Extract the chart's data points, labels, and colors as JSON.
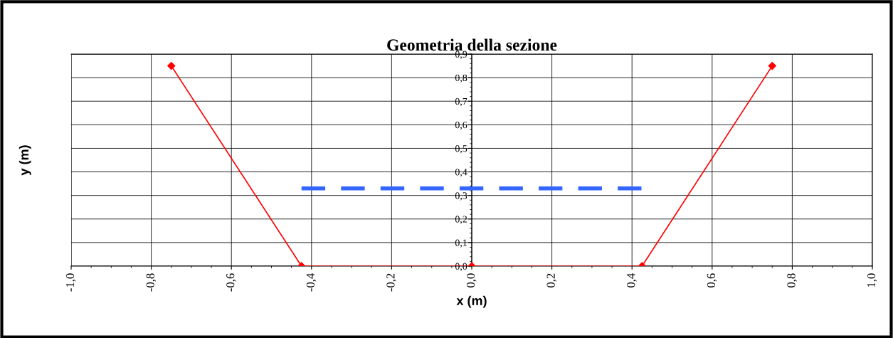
{
  "chart_data": {
    "type": "line",
    "title": "Geometria della sezione",
    "xlabel": "x (m)",
    "ylabel": "y (m)",
    "series": [
      {
        "color": "#ff0000",
        "x": [
          -0.75,
          -0.425,
          0,
          0.425,
          0.75
        ],
        "values": [
          0.85,
          0,
          0,
          0,
          0.85
        ],
        "marker": "diamond",
        "line_style": "solid"
      },
      {
        "color": "#3366ff",
        "x": [
          -0.425,
          0.425
        ],
        "values": [
          0.33,
          0.33
        ],
        "marker": "none",
        "line_style": "dashed"
      }
    ],
    "xlim": [
      -1,
      1
    ],
    "ylim": [
      0,
      0.9
    ],
    "xticks": [
      {
        "value": -1,
        "label": "-1,0"
      },
      {
        "value": -0.8,
        "label": "-0,8"
      },
      {
        "value": -0.6,
        "label": "-0,6"
      },
      {
        "value": -0.4,
        "label": "-0,4"
      },
      {
        "value": -0.2,
        "label": "-0,2"
      },
      {
        "value": 0,
        "label": "0,0"
      },
      {
        "value": 0.2,
        "label": "0,2"
      },
      {
        "value": 0.4,
        "label": "0,4"
      },
      {
        "value": 0.6,
        "label": "0,6"
      },
      {
        "value": 0.8,
        "label": "0,8"
      },
      {
        "value": 1,
        "label": "1,0"
      }
    ],
    "yticks": [
      {
        "value": 0,
        "label": "0,0"
      },
      {
        "value": 0.1,
        "label": "0,1"
      },
      {
        "value": 0.2,
        "label": "0,2"
      },
      {
        "value": 0.3,
        "label": "0,3"
      },
      {
        "value": 0.4,
        "label": "0,4"
      },
      {
        "value": 0.5,
        "label": "0,5"
      },
      {
        "value": 0.6,
        "label": "0,6"
      },
      {
        "value": 0.7,
        "label": "0,7"
      },
      {
        "value": 0.8,
        "label": "0,8"
      },
      {
        "value": 0.9,
        "label": "0,9"
      }
    ],
    "grid": true
  }
}
